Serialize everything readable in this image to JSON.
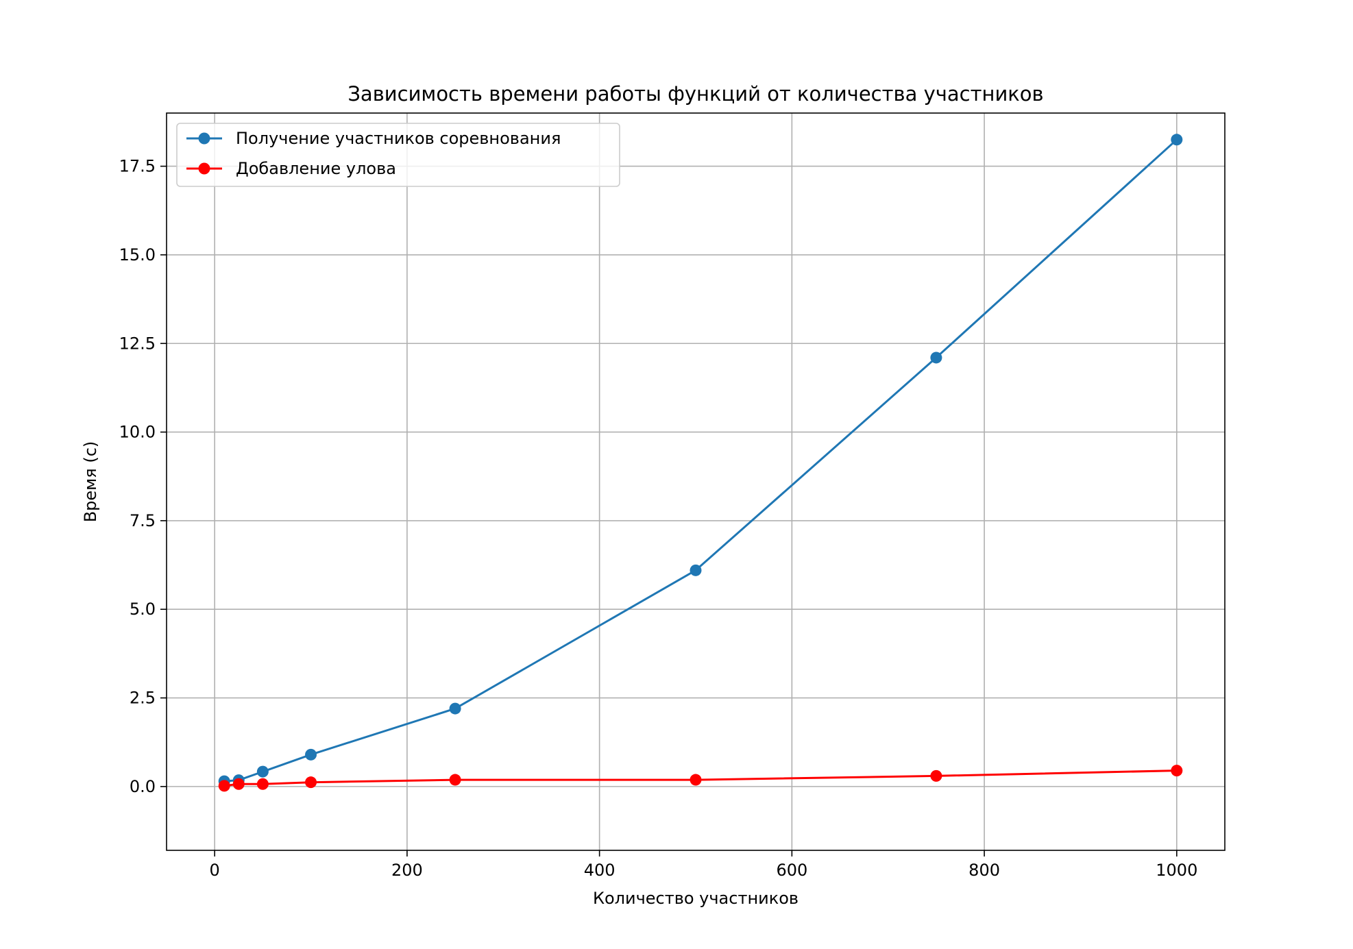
{
  "chart_data": {
    "type": "line",
    "title": "Зависимость времени работы функций от количества участников",
    "xlabel": "Количество участников",
    "ylabel": "Время (с)",
    "xlim": [
      -50,
      1050
    ],
    "ylim": [
      -1.8,
      19.0
    ],
    "xticks": [
      0,
      200,
      400,
      600,
      800,
      1000
    ],
    "yticks": [
      0.0,
      2.5,
      5.0,
      7.5,
      10.0,
      12.5,
      15.0,
      17.5
    ],
    "xtick_labels": [
      "0",
      "200",
      "400",
      "600",
      "800",
      "1000"
    ],
    "ytick_labels": [
      "0.0",
      "2.5",
      "5.0",
      "7.5",
      "10.0",
      "12.5",
      "15.0",
      "17.5"
    ],
    "grid": true,
    "legend_position": "top-left",
    "x": [
      10,
      25,
      50,
      100,
      250,
      500,
      750,
      1000
    ],
    "series": [
      {
        "name": "Получение участников соревнования",
        "color": "#1f77b4",
        "values": [
          0.15,
          0.18,
          0.42,
          0.9,
          2.2,
          6.1,
          12.1,
          18.25
        ]
      },
      {
        "name": "Добавление улова",
        "color": "#ff0000",
        "values": [
          0.02,
          0.07,
          0.07,
          0.12,
          0.19,
          0.19,
          0.3,
          0.45
        ]
      }
    ]
  }
}
